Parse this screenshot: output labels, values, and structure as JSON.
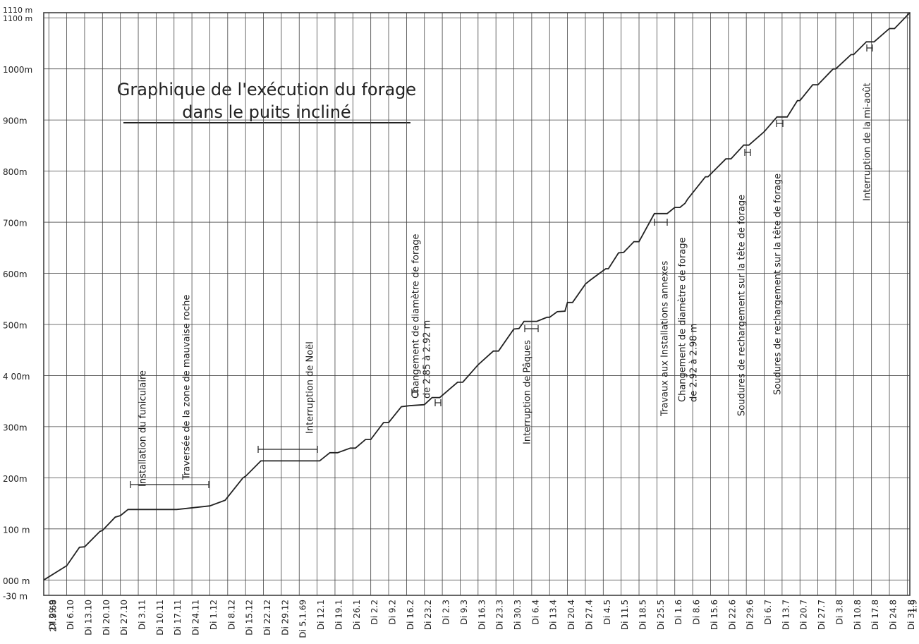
{
  "chart_data": {
    "type": "line",
    "title": "Graphique de l'exécution du forage",
    "subtitle": "dans le puits incliné",
    "color": "#222222",
    "grid": true,
    "xlim": [
      0,
      339
    ],
    "ylim": [
      -30,
      1110
    ],
    "yticks": [
      {
        "value": -30,
        "label": "-30 m"
      },
      {
        "value": 0,
        "label": "000 m"
      },
      {
        "value": 100,
        "label": "100 m"
      },
      {
        "value": 200,
        "label": "200m"
      },
      {
        "value": 300,
        "label": "300m"
      },
      {
        "value": 400,
        "label": "4 00m"
      },
      {
        "value": 500,
        "label": "500m"
      },
      {
        "value": 600,
        "label": "600m"
      },
      {
        "value": 700,
        "label": "700m"
      },
      {
        "value": 800,
        "label": "800m"
      },
      {
        "value": 900,
        "label": "900m"
      },
      {
        "value": 1000,
        "label": "1000m"
      },
      {
        "value": 1100,
        "label": "1100 m"
      },
      {
        "value": 1110,
        "label": "1110 m"
      }
    ],
    "xticks": [
      {
        "value": 0,
        "label": "27.9.68"
      },
      {
        "value": 2,
        "label": "Di 29.9"
      },
      {
        "value": 9,
        "label": "Di 6.10"
      },
      {
        "value": 16,
        "label": "Di 13.10"
      },
      {
        "value": 23,
        "label": "Di 20.10"
      },
      {
        "value": 30,
        "label": "Di 27.10"
      },
      {
        "value": 37,
        "label": "Di 3.11"
      },
      {
        "value": 44,
        "label": "Di 10.11"
      },
      {
        "value": 51,
        "label": "Di 17.11"
      },
      {
        "value": 58,
        "label": "Di 24.11"
      },
      {
        "value": 65,
        "label": "Di 1.12"
      },
      {
        "value": 72,
        "label": "Di 8.12"
      },
      {
        "value": 79,
        "label": "Di 15.12"
      },
      {
        "value": 86,
        "label": "Di 22.12"
      },
      {
        "value": 93,
        "label": "Di 29.12"
      },
      {
        "value": 100,
        "label": "Di 5.1.69"
      },
      {
        "value": 107,
        "label": "Di 12.1"
      },
      {
        "value": 114,
        "label": "Di 19.1"
      },
      {
        "value": 121,
        "label": "Di 26.1"
      },
      {
        "value": 128,
        "label": "Di 2.2"
      },
      {
        "value": 135,
        "label": "Di 9.2"
      },
      {
        "value": 142,
        "label": "Di 16.2"
      },
      {
        "value": 149,
        "label": "Di 23.2"
      },
      {
        "value": 156,
        "label": "Di 2.3"
      },
      {
        "value": 163,
        "label": "Di 9.3"
      },
      {
        "value": 170,
        "label": "Di 16.3"
      },
      {
        "value": 177,
        "label": "Di 23.3"
      },
      {
        "value": 184,
        "label": "Di 30.3"
      },
      {
        "value": 191,
        "label": "Di 6.4"
      },
      {
        "value": 198,
        "label": "Di 13.4"
      },
      {
        "value": 205,
        "label": "Di 20.4"
      },
      {
        "value": 212,
        "label": "Di 27.4"
      },
      {
        "value": 219,
        "label": "Di 4.5"
      },
      {
        "value": 226,
        "label": "Di 11.5"
      },
      {
        "value": 233,
        "label": "Di 18.5"
      },
      {
        "value": 240,
        "label": "Di 25.5"
      },
      {
        "value": 247,
        "label": "Di 1.6"
      },
      {
        "value": 254,
        "label": "Di 8.6"
      },
      {
        "value": 261,
        "label": "Di 15.6"
      },
      {
        "value": 268,
        "label": "Di 22.6"
      },
      {
        "value": 275,
        "label": "Di 29.6"
      },
      {
        "value": 282,
        "label": "Di 6.7"
      },
      {
        "value": 289,
        "label": "Di 13.7"
      },
      {
        "value": 296,
        "label": "Di 20.7"
      },
      {
        "value": 303,
        "label": "Di 27.7"
      },
      {
        "value": 310,
        "label": "Di 3.8"
      },
      {
        "value": 317,
        "label": "Di 10.8"
      },
      {
        "value": 324,
        "label": "Di 17.8"
      },
      {
        "value": 331,
        "label": "Di 24.8"
      },
      {
        "value": 338,
        "label": "Di 31.8"
      },
      {
        "value": 339,
        "label": "1.9"
      }
    ],
    "x": [
      0,
      9,
      14,
      16,
      22,
      23,
      28,
      30,
      33,
      52,
      65,
      71,
      78,
      79,
      85,
      108,
      112,
      115,
      120,
      122,
      126,
      128,
      133,
      135,
      140,
      143,
      149,
      152,
      155,
      162,
      164,
      170,
      176,
      178,
      184,
      186,
      188,
      193,
      197,
      198,
      201,
      204,
      205,
      207,
      212,
      214,
      220,
      221,
      225,
      227,
      231,
      233,
      239,
      244,
      246,
      247,
      249,
      251,
      252,
      259,
      260,
      267,
      269,
      274,
      276,
      282,
      287,
      291,
      295,
      296,
      301,
      303,
      309,
      310,
      316,
      317,
      322,
      325,
      331,
      333,
      339
    ],
    "values": [
      0,
      28,
      64,
      65,
      95,
      97,
      123,
      126,
      138,
      138,
      145,
      156,
      200,
      203,
      233,
      233,
      249,
      249,
      258,
      258,
      275,
      275,
      308,
      308,
      339,
      341,
      343,
      357,
      357,
      387,
      387,
      421,
      448,
      448,
      491,
      492,
      506,
      506,
      514,
      514,
      525,
      526,
      543,
      543,
      579,
      587,
      609,
      609,
      640,
      641,
      662,
      662,
      717,
      717,
      725,
      729,
      729,
      737,
      745,
      789,
      789,
      824,
      824,
      851,
      851,
      877,
      906,
      906,
      938,
      938,
      969,
      969,
      1000,
      1000,
      1028,
      1028,
      1053,
      1053,
      1079,
      1079,
      1110
    ],
    "annotations": [
      [
        "Installation du funiculaire"
      ],
      [
        "Traversée de la zone de mauvaise roche"
      ],
      [
        "Interruption de Noël"
      ],
      [
        "Changement de diamètre de forage",
        "de 2.85 à 2.92 m"
      ],
      [
        "Interruption de Pâques"
      ],
      [
        "Travaux aux Installations annexes"
      ],
      [
        "Changement de diamètre de forage",
        "de 2.92 à 2.98 m"
      ],
      [
        "Soudures de rechargement sur la tête de forage"
      ],
      [
        "Soudures de rechargement sur la tête de forage"
      ],
      [
        "Interruption de la mi-août"
      ]
    ]
  }
}
